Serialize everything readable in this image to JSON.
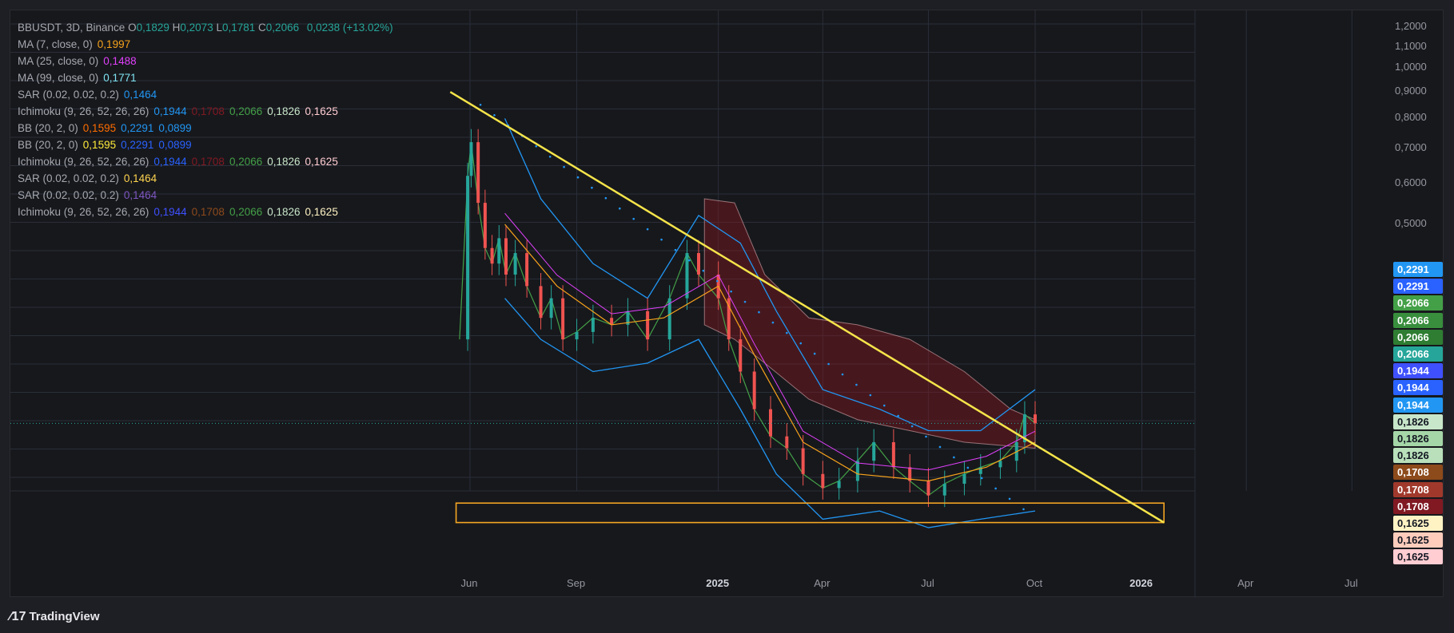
{
  "header": {
    "symbol": "BBUSDT, 3D, Binance",
    "ohlc": [
      {
        "label": "O",
        "value": "0,1829"
      },
      {
        "label": "H",
        "value": "0,2073"
      },
      {
        "label": "L",
        "value": "0,1781"
      },
      {
        "label": "C",
        "value": "0,2066"
      }
    ],
    "change": "0,0238 (+13.02%)"
  },
  "indicators": [
    {
      "name": "MA (7, close, 0)",
      "values": [
        {
          "v": "0,1997",
          "color": "#f7a21b"
        }
      ]
    },
    {
      "name": "MA (25, close, 0)",
      "values": [
        {
          "v": "0,1488",
          "color": "#e040fb"
        }
      ]
    },
    {
      "name": "MA (99, close, 0)",
      "values": [
        {
          "v": "0,1771",
          "color": "#7fe3f2"
        }
      ]
    },
    {
      "name": "SAR (0.02, 0.02, 0.2)",
      "values": [
        {
          "v": "0,1464",
          "color": "#2196f3"
        }
      ]
    },
    {
      "name": "Ichimoku (9, 26, 52, 26, 26)",
      "values": [
        {
          "v": "0,1944",
          "color": "#2196f3"
        },
        {
          "v": "0,1708",
          "color": "#801922"
        },
        {
          "v": "0,2066",
          "color": "#43a047"
        },
        {
          "v": "0,1826",
          "color": "#c8e6c9"
        },
        {
          "v": "0,1625",
          "color": "#ffcdd2"
        }
      ]
    },
    {
      "name": "BB (20, 2, 0)",
      "values": [
        {
          "v": "0,1595",
          "color": "#ff6d00"
        },
        {
          "v": "0,2291",
          "color": "#2196f3"
        },
        {
          "v": "0,0899",
          "color": "#2196f3"
        }
      ]
    },
    {
      "name": "BB (20, 2, 0)",
      "values": [
        {
          "v": "0,1595",
          "color": "#ffeb3b"
        },
        {
          "v": "0,2291",
          "color": "#2962ff"
        },
        {
          "v": "0,0899",
          "color": "#2962ff"
        }
      ]
    },
    {
      "name": "Ichimoku (9, 26, 52, 26, 26)",
      "values": [
        {
          "v": "0,1944",
          "color": "#2962ff"
        },
        {
          "v": "0,1708",
          "color": "#801922"
        },
        {
          "v": "0,2066",
          "color": "#43a047"
        },
        {
          "v": "0,1826",
          "color": "#c8e6c9"
        },
        {
          "v": "0,1625",
          "color": "#ffcdd2"
        }
      ]
    },
    {
      "name": "SAR (0.02, 0.02, 0.2)",
      "values": [
        {
          "v": "0,1464",
          "color": "#ffd54f"
        }
      ]
    },
    {
      "name": "SAR (0.02, 0.02, 0.2)",
      "values": [
        {
          "v": "0,1464",
          "color": "#7e57c2"
        }
      ]
    },
    {
      "name": "Ichimoku (9, 26, 52, 26, 26)",
      "values": [
        {
          "v": "0,1944",
          "color": "#3f51ff"
        },
        {
          "v": "0,1708",
          "color": "#8d4a1b"
        },
        {
          "v": "0,2066",
          "color": "#43a047"
        },
        {
          "v": "0,1826",
          "color": "#c8e6c9"
        },
        {
          "v": "0,1625",
          "color": "#fff3c4"
        }
      ]
    }
  ],
  "price_tags": [
    {
      "v": "0,2291",
      "bg": "#2196f3",
      "fg": "#ffffff",
      "price": 0.2291
    },
    {
      "v": "0,2291",
      "bg": "#2962ff",
      "fg": "#ffffff",
      "price": 0.2291
    },
    {
      "v": "0,2066",
      "bg": "#43a047",
      "fg": "#ffffff",
      "price": 0.2066
    },
    {
      "v": "0,2066",
      "bg": "#388e3c",
      "fg": "#ffffff",
      "price": 0.2066
    },
    {
      "v": "0,2066",
      "bg": "#2e7d32",
      "fg": "#ffffff",
      "price": 0.2066
    },
    {
      "v": "0,2066",
      "bg": "#26a69a",
      "fg": "#ffffff",
      "price": 0.2066
    },
    {
      "v": "0,1944",
      "bg": "#3f51ff",
      "fg": "#ffffff",
      "price": 0.1944
    },
    {
      "v": "0,1944",
      "bg": "#2962ff",
      "fg": "#ffffff",
      "price": 0.1944
    },
    {
      "v": "0,1944",
      "bg": "#2196f3",
      "fg": "#ffffff",
      "price": 0.1944
    },
    {
      "v": "0,1826",
      "bg": "#c8e6c9",
      "fg": "#131722",
      "price": 0.1826
    },
    {
      "v": "0,1826",
      "bg": "#a5d6a7",
      "fg": "#131722",
      "price": 0.1826
    },
    {
      "v": "0,1826",
      "bg": "#b9e0bb",
      "fg": "#131722",
      "price": 0.1826
    },
    {
      "v": "0,1708",
      "bg": "#8d4a1b",
      "fg": "#ffffff",
      "price": 0.1708
    },
    {
      "v": "0,1708",
      "bg": "#a0392c",
      "fg": "#ffffff",
      "price": 0.1708
    },
    {
      "v": "0,1708",
      "bg": "#801922",
      "fg": "#ffffff",
      "price": 0.1708
    },
    {
      "v": "0,1625",
      "bg": "#fff3c4",
      "fg": "#131722",
      "price": 0.1625
    },
    {
      "v": "0,1625",
      "bg": "#ffccbc",
      "fg": "#131722",
      "price": 0.1625
    },
    {
      "v": "0,1625",
      "bg": "#ffcdd2",
      "fg": "#131722",
      "price": 0.1625
    }
  ],
  "footer": {
    "brand": "TradingView"
  },
  "colors": {
    "bg": "#17181c",
    "grid": "#2a2e39",
    "up": "#26a69a",
    "down": "#ef5350",
    "trendline": "#f5e44a",
    "support_box": "#f5a623",
    "text": "#b2b5be"
  },
  "chart_data": {
    "type": "candlestick",
    "title": "BBUSDT, 3D, Binance",
    "y_scale": "log",
    "y_ticks": [
      "1,2000",
      "1,1000",
      "1,0000",
      "0,9000",
      "0,8000",
      "0,7000",
      "0,6000",
      "0,5000"
    ],
    "y_tick_values": [
      1.2,
      1.1,
      1.0,
      0.9,
      0.8,
      0.7,
      0.6,
      0.5
    ],
    "x_ticks": [
      {
        "label": "Jun",
        "major": false,
        "date": "2024-06-01"
      },
      {
        "label": "Sep",
        "major": false,
        "date": "2024-09-01"
      },
      {
        "label": "2025",
        "major": true,
        "date": "2025-01-01"
      },
      {
        "label": "Apr",
        "major": false,
        "date": "2025-04-01"
      },
      {
        "label": "Jul",
        "major": false,
        "date": "2025-07-01"
      },
      {
        "label": "Oct",
        "major": false,
        "date": "2025-10-01"
      },
      {
        "label": "2026",
        "major": true,
        "date": "2026-01-01"
      },
      {
        "label": "Apr",
        "major": false,
        "date": "2026-04-01"
      },
      {
        "label": "Jul",
        "major": false,
        "date": "2026-07-01"
      }
    ],
    "last_price": 0.2066,
    "price_series": [
      [
        "2024-05-23",
        0.3
      ],
      [
        "2024-05-30",
        0.62
      ],
      [
        "2024-06-02",
        0.72
      ],
      [
        "2024-06-08",
        0.55
      ],
      [
        "2024-06-14",
        0.45
      ],
      [
        "2024-06-20",
        0.42
      ],
      [
        "2024-06-26",
        0.47
      ],
      [
        "2024-07-02",
        0.4
      ],
      [
        "2024-07-10",
        0.44
      ],
      [
        "2024-07-20",
        0.38
      ],
      [
        "2024-08-01",
        0.33
      ],
      [
        "2024-08-10",
        0.36
      ],
      [
        "2024-08-20",
        0.3
      ],
      [
        "2024-09-01",
        0.31
      ],
      [
        "2024-09-15",
        0.33
      ],
      [
        "2024-10-01",
        0.32
      ],
      [
        "2024-10-15",
        0.34
      ],
      [
        "2024-11-01",
        0.3
      ],
      [
        "2024-11-20",
        0.36
      ],
      [
        "2024-12-05",
        0.44
      ],
      [
        "2024-12-15",
        0.4
      ],
      [
        "2025-01-01",
        0.36
      ],
      [
        "2025-01-10",
        0.3
      ],
      [
        "2025-01-20",
        0.26
      ],
      [
        "2025-02-01",
        0.22
      ],
      [
        "2025-02-15",
        0.195
      ],
      [
        "2025-03-01",
        0.185
      ],
      [
        "2025-03-15",
        0.165
      ],
      [
        "2025-04-01",
        0.155
      ],
      [
        "2025-04-15",
        0.16
      ],
      [
        "2025-05-01",
        0.175
      ],
      [
        "2025-05-15",
        0.19
      ],
      [
        "2025-06-01",
        0.17
      ],
      [
        "2025-06-15",
        0.16
      ],
      [
        "2025-07-01",
        0.15
      ],
      [
        "2025-07-15",
        0.158
      ],
      [
        "2025-08-01",
        0.165
      ],
      [
        "2025-08-15",
        0.17
      ],
      [
        "2025-09-01",
        0.175
      ],
      [
        "2025-09-15",
        0.19
      ],
      [
        "2025-09-22",
        0.215
      ],
      [
        "2025-10-01",
        0.2066
      ]
    ],
    "trendline": [
      [
        "2024-05-15",
        0.9
      ],
      [
        "2026-01-20",
        0.133
      ]
    ],
    "support_zone": {
      "from": "2024-05-20",
      "to": "2026-01-20",
      "low": 0.133,
      "high": 0.145
    }
  }
}
